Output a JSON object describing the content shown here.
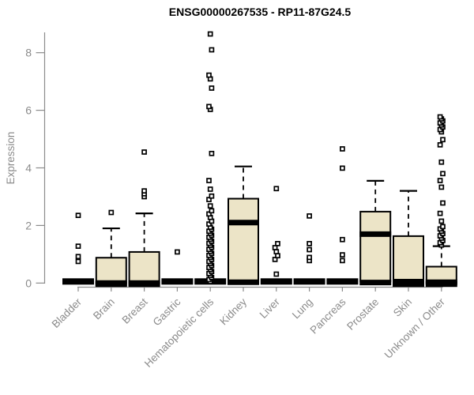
{
  "chart_data": {
    "type": "boxplot",
    "title": "ENSG00000267535 - RP11-87G24.5",
    "xlabel": "",
    "ylabel": "Expression",
    "ylim": [
      0,
      8.7
    ],
    "yticks": [
      0,
      2,
      4,
      6,
      8
    ],
    "grid": false,
    "legend": false,
    "categories": [
      "Bladder",
      "Brain",
      "Breast",
      "Gastric",
      "Hematopoietic cells",
      "Kidney",
      "Liver",
      "Lung",
      "Pancreas",
      "Prostate",
      "Skin",
      "Unknown / Other"
    ],
    "boxes": [
      {
        "category": "Bladder",
        "low": 0,
        "q1": 0,
        "median": 0,
        "q3": 0,
        "high": 0,
        "outliers": [
          0.75,
          0.92,
          1.28,
          2.35
        ]
      },
      {
        "category": "Brain",
        "low": 0,
        "q1": 0,
        "median": 0,
        "q3": 0.88,
        "high": 1.9,
        "outliers": [
          2.45
        ]
      },
      {
        "category": "Breast",
        "low": 0,
        "q1": 0,
        "median": 0,
        "q3": 1.08,
        "high": 2.42,
        "outliers": [
          3.0,
          3.1,
          3.2,
          4.55
        ]
      },
      {
        "category": "Gastric",
        "low": 0,
        "q1": 0,
        "median": 0,
        "q3": 0,
        "high": 0,
        "outliers": [
          1.08
        ]
      },
      {
        "category": "Hematopoietic cells",
        "low": 0,
        "q1": 0,
        "median": 0,
        "q3": 0,
        "high": 0,
        "outliers": [
          0.05,
          0.12,
          0.19,
          0.26,
          0.33,
          0.4,
          0.47,
          0.54,
          0.61,
          0.68,
          0.75,
          0.82,
          0.89,
          0.96,
          1.03,
          1.1,
          1.17,
          1.24,
          1.31,
          1.38,
          1.45,
          1.52,
          1.59,
          1.66,
          1.73,
          1.8,
          1.87,
          1.94,
          2.05,
          2.15,
          2.28,
          2.4,
          2.51,
          2.68,
          2.9,
          3.02,
          3.26,
          3.56,
          4.5,
          6.03,
          6.13,
          6.77,
          7.09,
          7.22,
          8.1,
          8.65
        ]
      },
      {
        "category": "Kidney",
        "low": 0,
        "q1": 0.07,
        "median": 2.1,
        "q3": 2.93,
        "high": 4.05,
        "outliers": []
      },
      {
        "category": "Liver",
        "low": 0,
        "q1": 0,
        "median": 0,
        "q3": 0,
        "high": 0,
        "outliers": [
          0.31,
          0.82,
          0.95,
          1.09,
          1.23,
          1.37,
          3.28
        ]
      },
      {
        "category": "Lung",
        "low": 0,
        "q1": 0,
        "median": 0,
        "q3": 0,
        "high": 0,
        "outliers": [
          0.78,
          0.89,
          1.16,
          1.37,
          2.33
        ]
      },
      {
        "category": "Pancreas",
        "low": 0,
        "q1": 0,
        "median": 0,
        "q3": 0,
        "high": 0,
        "outliers": [
          0.78,
          0.98,
          1.51,
          3.99,
          4.66
        ]
      },
      {
        "category": "Prostate",
        "low": 0,
        "q1": 0.06,
        "median": 1.7,
        "q3": 2.48,
        "high": 3.55,
        "outliers": []
      },
      {
        "category": "Skin",
        "low": 0,
        "q1": 0,
        "median": 0.05,
        "q3": 1.63,
        "high": 3.2,
        "outliers": []
      },
      {
        "category": "Unknown / Other",
        "low": 0,
        "q1": 0,
        "median": 0.03,
        "q3": 0.57,
        "high": 1.28,
        "outliers": [
          1.32,
          1.4,
          1.48,
          1.56,
          1.64,
          1.72,
          1.8,
          1.88,
          1.96,
          2.15,
          2.42,
          2.78,
          3.33,
          3.56,
          3.8,
          4.2,
          4.8,
          4.98,
          5.25,
          5.33,
          5.42,
          5.49,
          5.56,
          5.63,
          5.7,
          5.77
        ]
      }
    ]
  },
  "colors": {
    "box_fill": "#ece4c7",
    "box_border": "#000000",
    "axis": "#8b8b8b",
    "tick_label": "#8b8b8b",
    "title": "#000000"
  }
}
